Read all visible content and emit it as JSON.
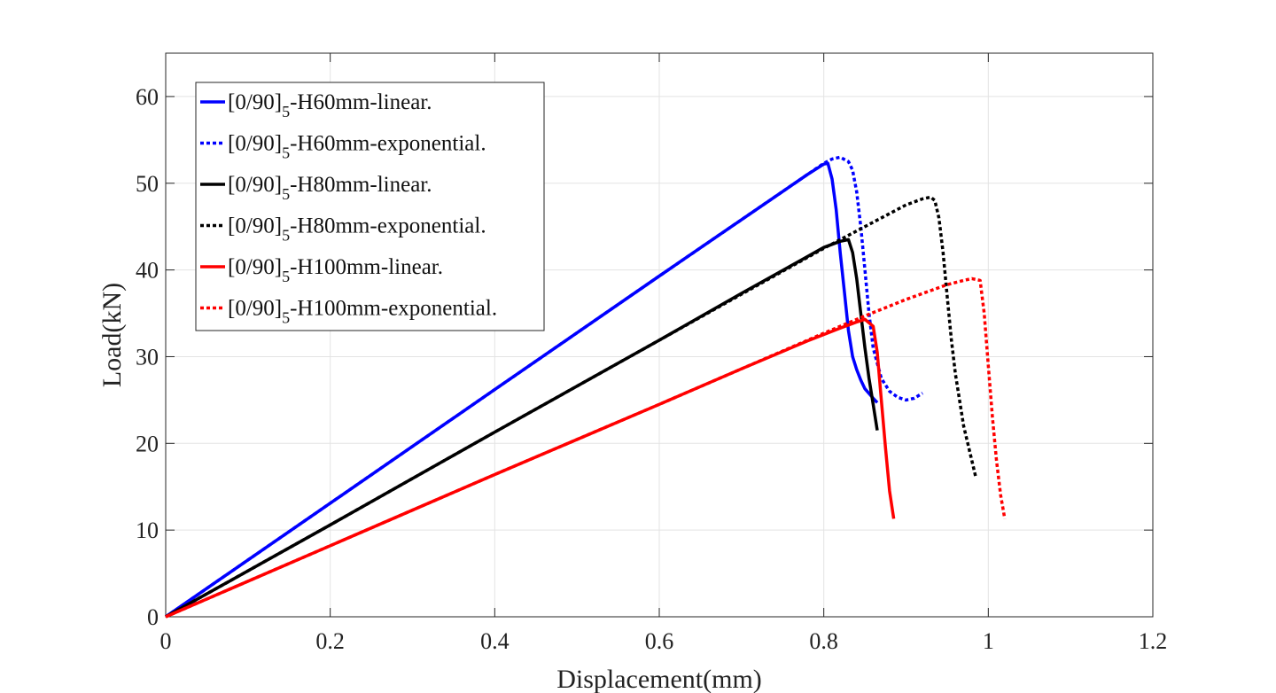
{
  "chart_data": {
    "type": "line",
    "title": "",
    "xlabel": "Displacement(mm)",
    "ylabel": "Load(kN)",
    "xlim": [
      0,
      1.2
    ],
    "ylim": [
      0,
      65
    ],
    "xticks": [
      0,
      0.2,
      0.4,
      0.6,
      0.8,
      1,
      1.2
    ],
    "xtick_labels": [
      "0",
      "0.2",
      "0.4",
      "0.6",
      "0.8",
      "1",
      "1.2"
    ],
    "yticks": [
      0,
      10,
      20,
      30,
      40,
      50,
      60
    ],
    "ytick_labels": [
      "0",
      "10",
      "20",
      "30",
      "40",
      "50",
      "60"
    ],
    "grid": true,
    "legend_position": "top-left",
    "series": [
      {
        "name_main": "[0/90]",
        "name_sub": "5",
        "name_rest": "-H60mm-linear.",
        "color": "#0000ff",
        "style": "solid",
        "x": [
          0,
          0.2,
          0.4,
          0.6,
          0.7,
          0.78,
          0.8,
          0.805,
          0.81,
          0.815,
          0.82,
          0.825,
          0.83,
          0.835,
          0.84,
          0.845,
          0.85,
          0.86,
          0.865
        ],
        "y": [
          0,
          13.1,
          26.2,
          39.3,
          45.8,
          51.0,
          52.2,
          52.3,
          50.5,
          47.0,
          42.0,
          37.5,
          33.0,
          30.0,
          28.5,
          27.3,
          26.3,
          25.2,
          24.7
        ]
      },
      {
        "name_main": "[0/90]",
        "name_sub": "5",
        "name_rest": "-H60mm-exponential.",
        "color": "#0000ff",
        "style": "dotted",
        "x": [
          0,
          0.2,
          0.4,
          0.6,
          0.7,
          0.78,
          0.8,
          0.81,
          0.82,
          0.83,
          0.835,
          0.84,
          0.845,
          0.85,
          0.855,
          0.86,
          0.87,
          0.88,
          0.89,
          0.9,
          0.91,
          0.92
        ],
        "y": [
          0,
          13.1,
          26.2,
          39.3,
          45.8,
          51.0,
          52.3,
          52.8,
          53.0,
          52.5,
          51.5,
          49.0,
          45.0,
          40.0,
          35.0,
          31.0,
          27.5,
          26.0,
          25.3,
          25.0,
          25.2,
          25.8
        ]
      },
      {
        "name_main": "[0/90]",
        "name_sub": "5",
        "name_rest": "-H80mm-linear.",
        "color": "#000000",
        "style": "solid",
        "x": [
          0,
          0.2,
          0.4,
          0.6,
          0.7,
          0.77,
          0.8,
          0.82,
          0.83,
          0.835,
          0.84,
          0.845,
          0.85,
          0.855,
          0.86,
          0.865
        ],
        "y": [
          0,
          10.6,
          21.3,
          31.9,
          37.3,
          41.0,
          42.6,
          43.3,
          43.5,
          42.0,
          39.0,
          35.0,
          31.0,
          27.5,
          24.5,
          21.5
        ]
      },
      {
        "name_main": "[0/90]",
        "name_sub": "5",
        "name_rest": "-H80mm-exponential.",
        "color": "#000000",
        "style": "dotted",
        "x": [
          0,
          0.2,
          0.4,
          0.6,
          0.7,
          0.8,
          0.85,
          0.9,
          0.92,
          0.93,
          0.935,
          0.94,
          0.945,
          0.95,
          0.955,
          0.96,
          0.97,
          0.98,
          0.985
        ],
        "y": [
          0,
          10.6,
          21.3,
          31.9,
          37.2,
          42.5,
          45.0,
          47.5,
          48.2,
          48.4,
          48.0,
          46.0,
          42.0,
          37.0,
          32.0,
          28.0,
          22.0,
          18.0,
          16.0
        ]
      },
      {
        "name_main": "[0/90]",
        "name_sub": "5",
        "name_rest": "-H100mm-linear.",
        "color": "#ff0000",
        "style": "solid",
        "x": [
          0,
          0.2,
          0.4,
          0.6,
          0.7,
          0.78,
          0.82,
          0.84,
          0.85,
          0.86,
          0.865,
          0.87,
          0.875,
          0.88,
          0.885
        ],
        "y": [
          0,
          8.2,
          16.4,
          24.5,
          28.6,
          31.8,
          33.3,
          34.0,
          34.3,
          33.5,
          30.5,
          25.0,
          19.5,
          14.5,
          11.3
        ]
      },
      {
        "name_main": "[0/90]",
        "name_sub": "5",
        "name_rest": "-H100mm-exponential.",
        "color": "#ff0000",
        "style": "dotted",
        "x": [
          0,
          0.2,
          0.4,
          0.6,
          0.7,
          0.8,
          0.85,
          0.9,
          0.95,
          0.97,
          0.98,
          0.99,
          0.995,
          1.0,
          1.005,
          1.01,
          1.015,
          1.02
        ],
        "y": [
          0,
          8.2,
          16.4,
          24.5,
          28.6,
          32.7,
          34.7,
          36.6,
          38.3,
          38.8,
          39.0,
          38.8,
          35.0,
          29.0,
          23.0,
          18.0,
          14.0,
          11.3
        ]
      }
    ]
  }
}
